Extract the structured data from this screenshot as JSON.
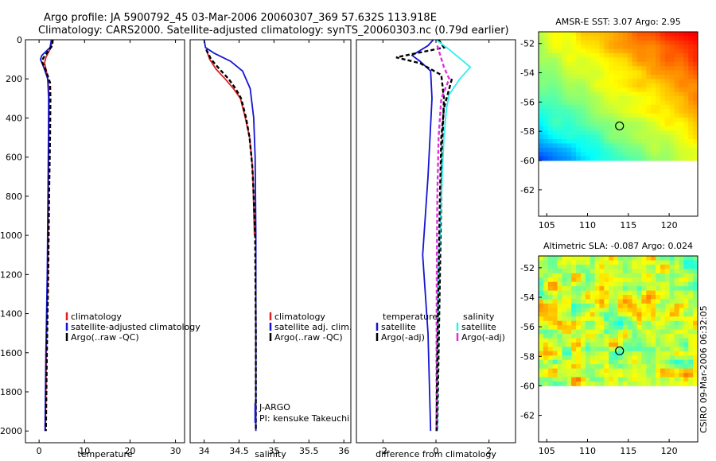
{
  "figure": {
    "title_line1": "Argo profile: JA 5900792_45 03-Mar-2006 20060307_369 57.632S 113.918E",
    "title_line2": "Climatology: CARS2000. Satellite-adjusted climatology: synTS_20060303.nc (0.79d earlier)",
    "footer": "CSIRO 09-Mar-2006 06:32:05",
    "colors": {
      "red": "#e02020",
      "blue": "#1414d2",
      "black": "#000000",
      "cyan": "#30f0f0",
      "magenta": "#e030e0"
    }
  },
  "chart_data": [
    {
      "id": "temperature",
      "type": "line",
      "xlabel": "temperature",
      "ylabel": "",
      "xlim": [
        -3,
        32
      ],
      "ylim": [
        2060,
        0
      ],
      "xticks": [
        0,
        10,
        20,
        30
      ],
      "yticks": [
        0,
        200,
        400,
        600,
        800,
        1000,
        1200,
        1400,
        1600,
        1800,
        2000
      ],
      "series": [
        {
          "name": "climatology",
          "color": "#e02020",
          "dash": "",
          "points": [
            [
              2.9,
              0
            ],
            [
              2.6,
              40
            ],
            [
              1.5,
              90
            ],
            [
              1.2,
              120
            ],
            [
              1.6,
              160
            ],
            [
              2.0,
              220
            ],
            [
              2.2,
              300
            ],
            [
              2.15,
              500
            ],
            [
              2.05,
              800
            ],
            [
              1.9,
              1200
            ],
            [
              1.6,
              1600
            ],
            [
              1.4,
              2000
            ]
          ]
        },
        {
          "name": "satellite-adjusted climatology",
          "color": "#1414d2",
          "dash": "",
          "points": [
            [
              2.7,
              0
            ],
            [
              2.4,
              40
            ],
            [
              0.6,
              80
            ],
            [
              0.3,
              100
            ],
            [
              1.0,
              140
            ],
            [
              1.9,
              200
            ],
            [
              2.1,
              300
            ],
            [
              2.05,
              500
            ],
            [
              1.95,
              800
            ],
            [
              1.8,
              1200
            ],
            [
              1.5,
              1600
            ],
            [
              1.3,
              2000
            ]
          ]
        },
        {
          "name": "Argo(..raw -QC)",
          "color": "#000000",
          "dash": "5,3",
          "points": [
            [
              3.0,
              0
            ],
            [
              2.9,
              30
            ],
            [
              1.0,
              90
            ],
            [
              0.6,
              110
            ],
            [
              1.4,
              150
            ],
            [
              2.4,
              220
            ],
            [
              2.5,
              300
            ],
            [
              2.4,
              500
            ],
            [
              2.2,
              800
            ],
            [
              2.0,
              1200
            ],
            [
              1.7,
              1600
            ],
            [
              1.5,
              2000
            ]
          ]
        }
      ],
      "legend": [
        {
          "label": "climatology",
          "color": "#e02020"
        },
        {
          "label": "satellite-adjusted climatology",
          "color": "#1414d2"
        },
        {
          "label": "Argo(..raw -QC)",
          "color": "#000000"
        }
      ]
    },
    {
      "id": "salinity",
      "type": "line",
      "xlabel": "salinity",
      "xlim": [
        33.8,
        36.1
      ],
      "ylim": [
        2060,
        0
      ],
      "xticks": [
        34,
        34.5,
        35,
        35.5,
        36
      ],
      "yticks": [],
      "series": [
        {
          "name": "climatology",
          "color": "#e02020",
          "dash": "",
          "points": [
            [
              34.03,
              50
            ],
            [
              34.08,
              100
            ],
            [
              34.17,
              150
            ],
            [
              34.3,
              200
            ],
            [
              34.42,
              250
            ],
            [
              34.52,
              300
            ],
            [
              34.59,
              400
            ],
            [
              34.65,
              500
            ],
            [
              34.68,
              600
            ],
            [
              34.7,
              700
            ],
            [
              34.71,
              850
            ],
            [
              34.72,
              1000
            ]
          ]
        },
        {
          "name": "satellite adj. clim.",
          "color": "#1414d2",
          "dash": "",
          "points": [
            [
              34.0,
              0
            ],
            [
              34.02,
              40
            ],
            [
              34.15,
              70
            ],
            [
              34.38,
              110
            ],
            [
              34.55,
              160
            ],
            [
              34.66,
              250
            ],
            [
              34.71,
              400
            ],
            [
              34.73,
              600
            ],
            [
              34.74,
              1000
            ],
            [
              34.74,
              1500
            ],
            [
              34.74,
              2000
            ]
          ]
        },
        {
          "name": "Argo(..raw -QC)",
          "color": "#000000",
          "dash": "5,3",
          "points": [
            [
              34.03,
              50
            ],
            [
              34.1,
              100
            ],
            [
              34.22,
              150
            ],
            [
              34.35,
              200
            ],
            [
              34.45,
              250
            ],
            [
              34.53,
              300
            ],
            [
              34.6,
              400
            ],
            [
              34.65,
              500
            ],
            [
              34.69,
              650
            ],
            [
              34.71,
              800
            ],
            [
              34.73,
              1000
            ],
            [
              34.74,
              1500
            ],
            [
              34.74,
              2000
            ]
          ]
        }
      ],
      "legend": [
        {
          "label": "climatology",
          "color": "#e02020"
        },
        {
          "label": "satellite adj. clim.",
          "color": "#1414d2"
        },
        {
          "label": "Argo(..raw -QC)",
          "color": "#000000"
        }
      ],
      "annotations": [
        "J-ARGO",
        "PI: kensuke Takeuchi"
      ]
    },
    {
      "id": "difference",
      "type": "line",
      "xlabel": "difference from climatology",
      "xlim": [
        -3.0,
        3.0
      ],
      "ylim": [
        2060,
        0
      ],
      "xticks": [
        -2,
        0,
        2
      ],
      "yticks": [],
      "series": [
        {
          "name": "temperature satellite",
          "color": "#1414d2",
          "dash": "",
          "points": [
            [
              -0.1,
              0
            ],
            [
              -0.3,
              30
            ],
            [
              -0.9,
              80
            ],
            [
              -0.6,
              110
            ],
            [
              -0.2,
              160
            ],
            [
              -0.15,
              300
            ],
            [
              -0.3,
              700
            ],
            [
              -0.5,
              1100
            ],
            [
              -0.3,
              1500
            ],
            [
              -0.2,
              2000
            ]
          ]
        },
        {
          "name": "temperature Argo(-adj)",
          "color": "#000000",
          "dash": "5,3",
          "points": [
            [
              0.1,
              0
            ],
            [
              0.3,
              40
            ],
            [
              -1.5,
              90
            ],
            [
              -0.6,
              120
            ],
            [
              0.2,
              180
            ],
            [
              0.3,
              300
            ],
            [
              0.25,
              500
            ],
            [
              0.2,
              800
            ],
            [
              0.15,
              1200
            ],
            [
              0.1,
              1600
            ],
            [
              0.05,
              2000
            ]
          ]
        },
        {
          "name": "salinity satellite",
          "color": "#30f0f0",
          "dash": "",
          "points": [
            [
              0,
              0
            ],
            [
              0.5,
              50
            ],
            [
              1.3,
              140
            ],
            [
              0.9,
              200
            ],
            [
              0.5,
              280
            ],
            [
              0.4,
              350
            ],
            [
              0.3,
              500
            ],
            [
              0.2,
              800
            ],
            [
              0.1,
              1200
            ],
            [
              0.05,
              1600
            ],
            [
              0.05,
              2000
            ]
          ]
        },
        {
          "name": "salinity Argo(-adj)",
          "color": "#e030e0",
          "dash": "5,3",
          "points": [
            [
              0.05,
              30
            ],
            [
              0.3,
              140
            ],
            [
              0.5,
              200
            ],
            [
              0.2,
              300
            ],
            [
              0.1,
              500
            ],
            [
              0.05,
              800
            ],
            [
              0.03,
              1200
            ],
            [
              0.02,
              1600
            ],
            [
              0.02,
              2000
            ]
          ]
        },
        {
          "name": "Argo salinity",
          "color": "#000000",
          "dash": "5,3",
          "points": [
            [
              0.6,
              200
            ],
            [
              0.5,
              250
            ],
            [
              0.3,
              350
            ],
            [
              0.2,
              500
            ],
            [
              0.15,
              800
            ],
            [
              0.1,
              1200
            ],
            [
              0.05,
              1600
            ],
            [
              0.02,
              2000
            ]
          ]
        }
      ],
      "legend_left_header": "temperature",
      "legend_right_header": "salinity",
      "legend_left": [
        {
          "label": "satellite",
          "color": "#1414d2"
        },
        {
          "label": "Argo(-adj)",
          "color": "#000000"
        }
      ],
      "legend_right": [
        {
          "label": "satellite",
          "color": "#30f0f0"
        },
        {
          "label": "Argo(-adj)",
          "color": "#e030e0"
        }
      ]
    },
    {
      "id": "sst_map",
      "type": "heatmap",
      "title": "AMSR-E SST: 3.07 Argo: 2.95",
      "xlim": [
        104,
        123.5
      ],
      "ylim": [
        -63.8,
        -51.2
      ],
      "data_ylim": [
        -60,
        -51.2
      ],
      "xticks": [
        105,
        110,
        115,
        120
      ],
      "yticks": [
        -52,
        -54,
        -56,
        -58,
        -60,
        -62
      ],
      "marker": {
        "lon": 113.918,
        "lat": -57.632
      }
    },
    {
      "id": "sla_map",
      "type": "heatmap",
      "title": "Altimetric SLA: -0.087 Argo: 0.024",
      "xlim": [
        104,
        123.5
      ],
      "ylim": [
        -63.8,
        -51.2
      ],
      "data_ylim": [
        -60,
        -51.2
      ],
      "xticks": [
        105,
        110,
        115,
        120
      ],
      "yticks": [
        -52,
        -54,
        -56,
        -58,
        -60,
        -62
      ],
      "marker": {
        "lon": 113.918,
        "lat": -57.632
      }
    }
  ]
}
